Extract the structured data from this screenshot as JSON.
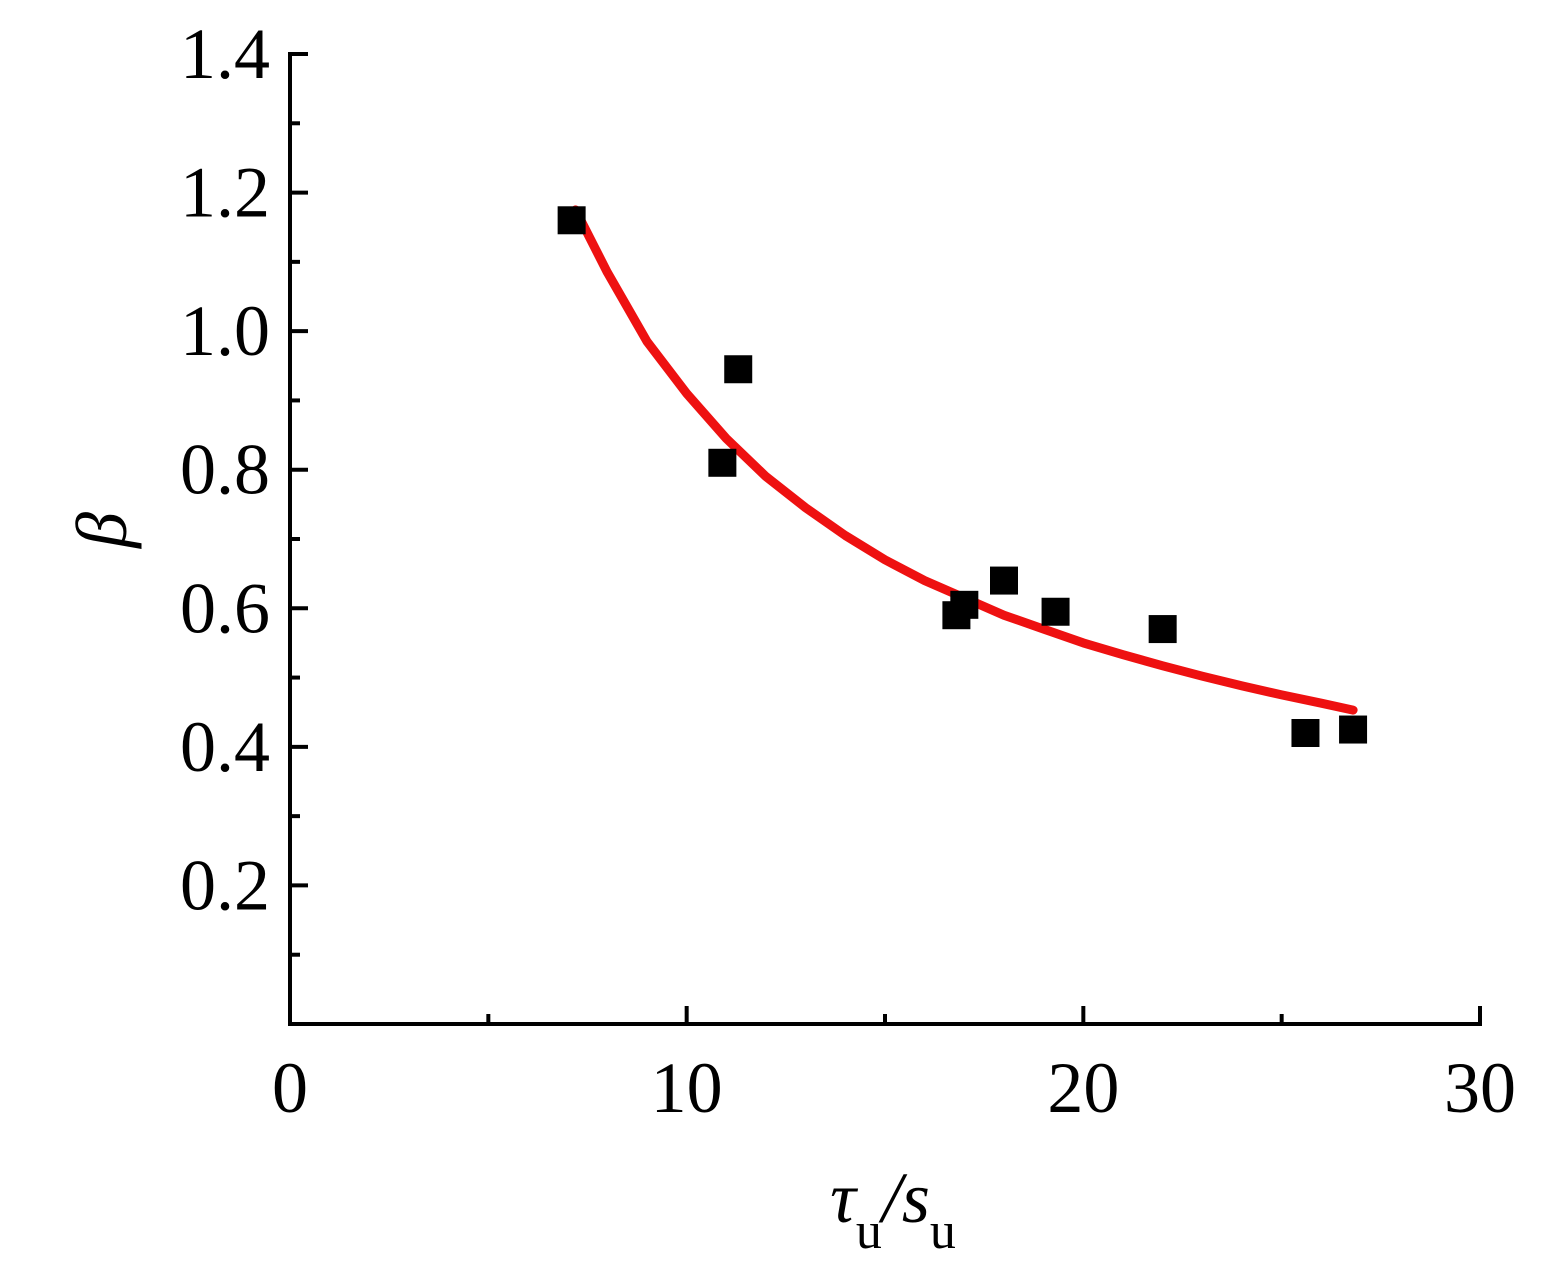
{
  "chart_data": {
    "type": "scatter",
    "xlabel": {
      "parts": [
        {
          "text": "τ",
          "sub": false
        },
        {
          "text": "u",
          "sub": true
        },
        {
          "text": "/s",
          "sub": false
        },
        {
          "text": "u",
          "sub": true
        }
      ]
    },
    "ylabel": "β",
    "xlim": [
      0,
      30
    ],
    "ylim": [
      0,
      1.4
    ],
    "xticks": [
      0,
      10,
      20,
      30
    ],
    "xtick_labels": [
      "0",
      "10",
      "20",
      "30"
    ],
    "yticks": [
      0.2,
      0.4,
      0.6,
      0.8,
      1.0,
      1.2,
      1.4
    ],
    "ytick_labels": [
      "0.2",
      "0.4",
      "0.6",
      "0.8",
      "1.0",
      "1.2",
      "1.4"
    ],
    "grid": false,
    "series": [
      {
        "kind": "points",
        "marker": "square",
        "color": "#000000",
        "x": [
          7.1,
          10.9,
          11.3,
          16.8,
          17.0,
          18.0,
          19.3,
          22.0,
          25.6,
          26.8
        ],
        "y": [
          1.16,
          0.81,
          0.945,
          0.59,
          0.605,
          0.64,
          0.595,
          0.57,
          0.42,
          0.425
        ]
      },
      {
        "kind": "fit-curve",
        "color": "#ee1111",
        "x": [
          7.2,
          8.0,
          9.0,
          10.0,
          11.0,
          12.0,
          13.0,
          14.0,
          15.0,
          16.0,
          17.0,
          18.0,
          19.0,
          20.0,
          21.0,
          22.0,
          23.0,
          24.0,
          25.0,
          26.0,
          26.8
        ],
        "y": [
          1.175,
          1.085,
          0.985,
          0.91,
          0.845,
          0.79,
          0.745,
          0.705,
          0.67,
          0.64,
          0.615,
          0.59,
          0.57,
          0.55,
          0.533,
          0.517,
          0.502,
          0.488,
          0.475,
          0.463,
          0.453
        ]
      }
    ]
  }
}
